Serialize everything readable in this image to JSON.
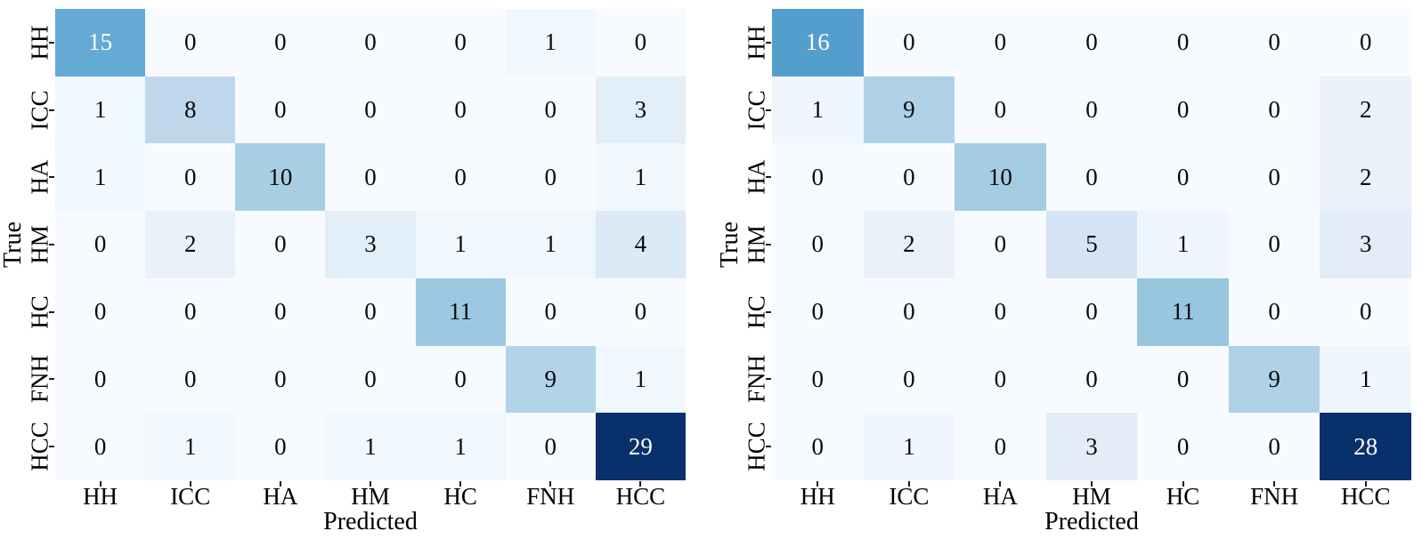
{
  "figure": {
    "background": "#ffffff"
  },
  "colormap": {
    "name": "Blues",
    "stops": [
      "#f7fbff",
      "#deebf7",
      "#c6dbef",
      "#9ecae1",
      "#6baed6",
      "#4292c6",
      "#2171b5",
      "#08519c",
      "#08306b"
    ]
  },
  "cell_text": {
    "on_light": "#0a0a0a",
    "on_dark": "#ffffff",
    "white_text_threshold": 0.5
  },
  "classes": [
    "HH",
    "ICC",
    "HA",
    "HM",
    "HC",
    "FNH",
    "HCC"
  ],
  "chart_data": [
    {
      "type": "heatmap",
      "title": "",
      "xlabel": "Predicted",
      "ylabel": "True",
      "x_categories": [
        "HH",
        "ICC",
        "HA",
        "HM",
        "HC",
        "FNH",
        "HCC"
      ],
      "y_categories": [
        "HH",
        "ICC",
        "HA",
        "HM",
        "HC",
        "FNH",
        "HCC"
      ],
      "vmin": 0,
      "vmax": 29,
      "legend": "off",
      "grid": "off",
      "matrix": [
        [
          15,
          0,
          0,
          0,
          0,
          1,
          0
        ],
        [
          1,
          8,
          0,
          0,
          0,
          0,
          3
        ],
        [
          1,
          0,
          10,
          0,
          0,
          0,
          1
        ],
        [
          0,
          2,
          0,
          3,
          1,
          1,
          4
        ],
        [
          0,
          0,
          0,
          0,
          11,
          0,
          0
        ],
        [
          0,
          0,
          0,
          0,
          0,
          9,
          1
        ],
        [
          0,
          1,
          0,
          1,
          1,
          0,
          29
        ]
      ]
    },
    {
      "type": "heatmap",
      "title": "",
      "xlabel": "Predicted",
      "ylabel": "True",
      "x_categories": [
        "HH",
        "ICC",
        "HA",
        "HM",
        "HC",
        "FNH",
        "HCC"
      ],
      "y_categories": [
        "HH",
        "ICC",
        "HA",
        "HM",
        "HC",
        "FNH",
        "HCC"
      ],
      "vmin": 0,
      "vmax": 28,
      "legend": "off",
      "grid": "off",
      "matrix": [
        [
          16,
          0,
          0,
          0,
          0,
          0,
          0
        ],
        [
          1,
          9,
          0,
          0,
          0,
          0,
          2
        ],
        [
          0,
          0,
          10,
          0,
          0,
          0,
          2
        ],
        [
          0,
          2,
          0,
          5,
          1,
          0,
          3
        ],
        [
          0,
          0,
          0,
          0,
          11,
          0,
          0
        ],
        [
          0,
          0,
          0,
          0,
          0,
          9,
          1
        ],
        [
          0,
          1,
          0,
          3,
          0,
          0,
          28
        ]
      ]
    }
  ]
}
